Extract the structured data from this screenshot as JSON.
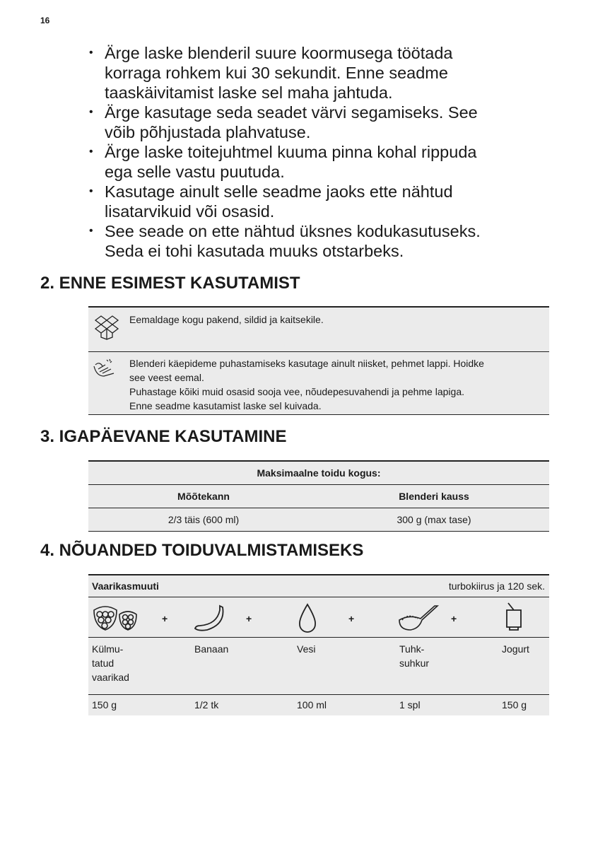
{
  "page_number": "16",
  "bullets": [
    [
      "Ärge laske blenderil suure koormusega töötada",
      "korraga rohkem kui 30 sekundit. Enne seadme",
      "taaskäivitamist laske sel maha jahtuda."
    ],
    [
      "Ärge kasutage seda seadet värvi segamiseks. See",
      "võib põhjustada plahvatuse."
    ],
    [
      "Ärge laske toitejuhtmel kuuma pinna kohal rippuda",
      "ega selle vastu puutuda."
    ],
    [
      "Kasutage ainult selle seadme jaoks ette nähtud",
      "lisatarvikuid või osasid."
    ],
    [
      "See seade on ette nähtud üksnes kodukasutuseks.",
      "Seda ei tohi kasutada muuks otstarbeks."
    ]
  ],
  "section2": {
    "title": "2. ENNE ESIMEST KASUTAMIST",
    "rows": [
      {
        "icon": "box-unpack-icon",
        "lines": [
          "Eemaldage kogu pakend, sildid ja kaitsekile."
        ]
      },
      {
        "icon": "hand-wash-icon",
        "lines": [
          "Blenderi käepideme puhastamiseks kasutage ainult niisket, pehmet lappi. Hoidke",
          "see veest eemal.",
          "Puhastage kõiki muid osasid sooja vee, nõudepesuvahendi ja pehme lapiga.",
          "Enne seadme kasutamist laske sel kuivada."
        ]
      }
    ]
  },
  "section3": {
    "title": "3. IGAPÄEVANE KASUTAMINE",
    "table_title": "Maksimaalne toidu kogus:",
    "headers": [
      "Mõõtekann",
      "Blenderi kauss"
    ],
    "values": [
      "2/3 täis (600 ml)",
      "300 g (max tase)"
    ]
  },
  "section4": {
    "title": "4. NÕUANDED TOIDUVALMISTAMISEKS",
    "recipe": "Vaarikasmuuti",
    "setting": "turbokiirus ja 120 sek.",
    "plus": "+",
    "ingredients": [
      {
        "icon": "raspberry-icon",
        "name": [
          "Külmu-",
          "tatud",
          "vaarikad"
        ],
        "amount": "150 g"
      },
      {
        "icon": "banana-icon",
        "name": [
          "Banaan"
        ],
        "amount": "1/2 tk"
      },
      {
        "icon": "water-drop-icon",
        "name": [
          "Vesi"
        ],
        "amount": "100 ml"
      },
      {
        "icon": "sugar-spoon-icon",
        "name": [
          "Tuhk-",
          "suhkur"
        ],
        "amount": "1 spl"
      },
      {
        "icon": "yogurt-cup-icon",
        "name": [
          "Jogurt"
        ],
        "amount": "150 g"
      }
    ]
  }
}
